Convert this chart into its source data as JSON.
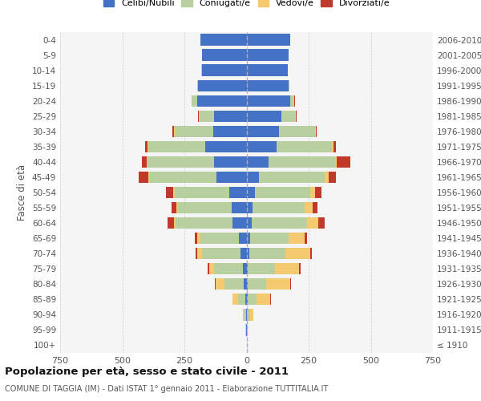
{
  "age_groups": [
    "100+",
    "95-99",
    "90-94",
    "85-89",
    "80-84",
    "75-79",
    "70-74",
    "65-69",
    "60-64",
    "55-59",
    "50-54",
    "45-49",
    "40-44",
    "35-39",
    "30-34",
    "25-29",
    "20-24",
    "15-19",
    "10-14",
    "5-9",
    "0-4"
  ],
  "birth_years": [
    "≤ 1910",
    "1911-1915",
    "1916-1920",
    "1921-1925",
    "1926-1930",
    "1931-1935",
    "1936-1940",
    "1941-1945",
    "1946-1950",
    "1951-1955",
    "1956-1960",
    "1961-1965",
    "1966-1970",
    "1971-1975",
    "1976-1980",
    "1981-1985",
    "1986-1990",
    "1991-1995",
    "1996-2000",
    "2001-2005",
    "2006-2010"
  ],
  "male": {
    "celibi": [
      0,
      1,
      3,
      5,
      10,
      15,
      25,
      30,
      55,
      60,
      70,
      120,
      130,
      165,
      135,
      130,
      200,
      195,
      180,
      180,
      185
    ],
    "coniugati": [
      0,
      2,
      8,
      30,
      80,
      115,
      155,
      155,
      230,
      215,
      220,
      270,
      270,
      230,
      155,
      60,
      20,
      5,
      2,
      0,
      0
    ],
    "vedovi": [
      0,
      1,
      5,
      20,
      35,
      20,
      20,
      15,
      8,
      6,
      4,
      5,
      3,
      3,
      2,
      2,
      1,
      0,
      0,
      0,
      0
    ],
    "divorziati": [
      0,
      0,
      0,
      0,
      2,
      5,
      5,
      8,
      25,
      20,
      30,
      40,
      18,
      10,
      5,
      2,
      1,
      0,
      0,
      0,
      0
    ]
  },
  "female": {
    "nubili": [
      0,
      1,
      3,
      5,
      5,
      5,
      10,
      15,
      20,
      25,
      35,
      50,
      90,
      120,
      130,
      140,
      175,
      170,
      165,
      170,
      175
    ],
    "coniugate": [
      0,
      2,
      10,
      35,
      75,
      110,
      145,
      155,
      225,
      210,
      220,
      265,
      265,
      225,
      145,
      55,
      15,
      4,
      2,
      0,
      0
    ],
    "vedove": [
      0,
      2,
      15,
      55,
      95,
      95,
      100,
      65,
      45,
      30,
      20,
      15,
      8,
      5,
      3,
      3,
      2,
      0,
      0,
      0,
      0
    ],
    "divorziate": [
      0,
      0,
      0,
      2,
      3,
      8,
      8,
      8,
      25,
      20,
      25,
      30,
      55,
      10,
      5,
      3,
      2,
      0,
      0,
      0,
      0
    ]
  },
  "colors": {
    "celibi_nubili": "#4472c4",
    "coniugati": "#b8cfa0",
    "vedovi": "#f5c96e",
    "divorziati": "#c0392b"
  },
  "title": "Popolazione per età, sesso e stato civile - 2011",
  "subtitle": "COMUNE DI TAGGIA (IM) - Dati ISTAT 1° gennaio 2011 - Elaborazione TUTTITALIA.IT",
  "ylabel_left": "Fasce di età",
  "xlim": 750,
  "legend_labels": [
    "Celibi/Nubili",
    "Coniugati/e",
    "Vedovi/e",
    "Divorziati/e"
  ],
  "background_color": "#ffffff",
  "grid_color": "#cccccc"
}
